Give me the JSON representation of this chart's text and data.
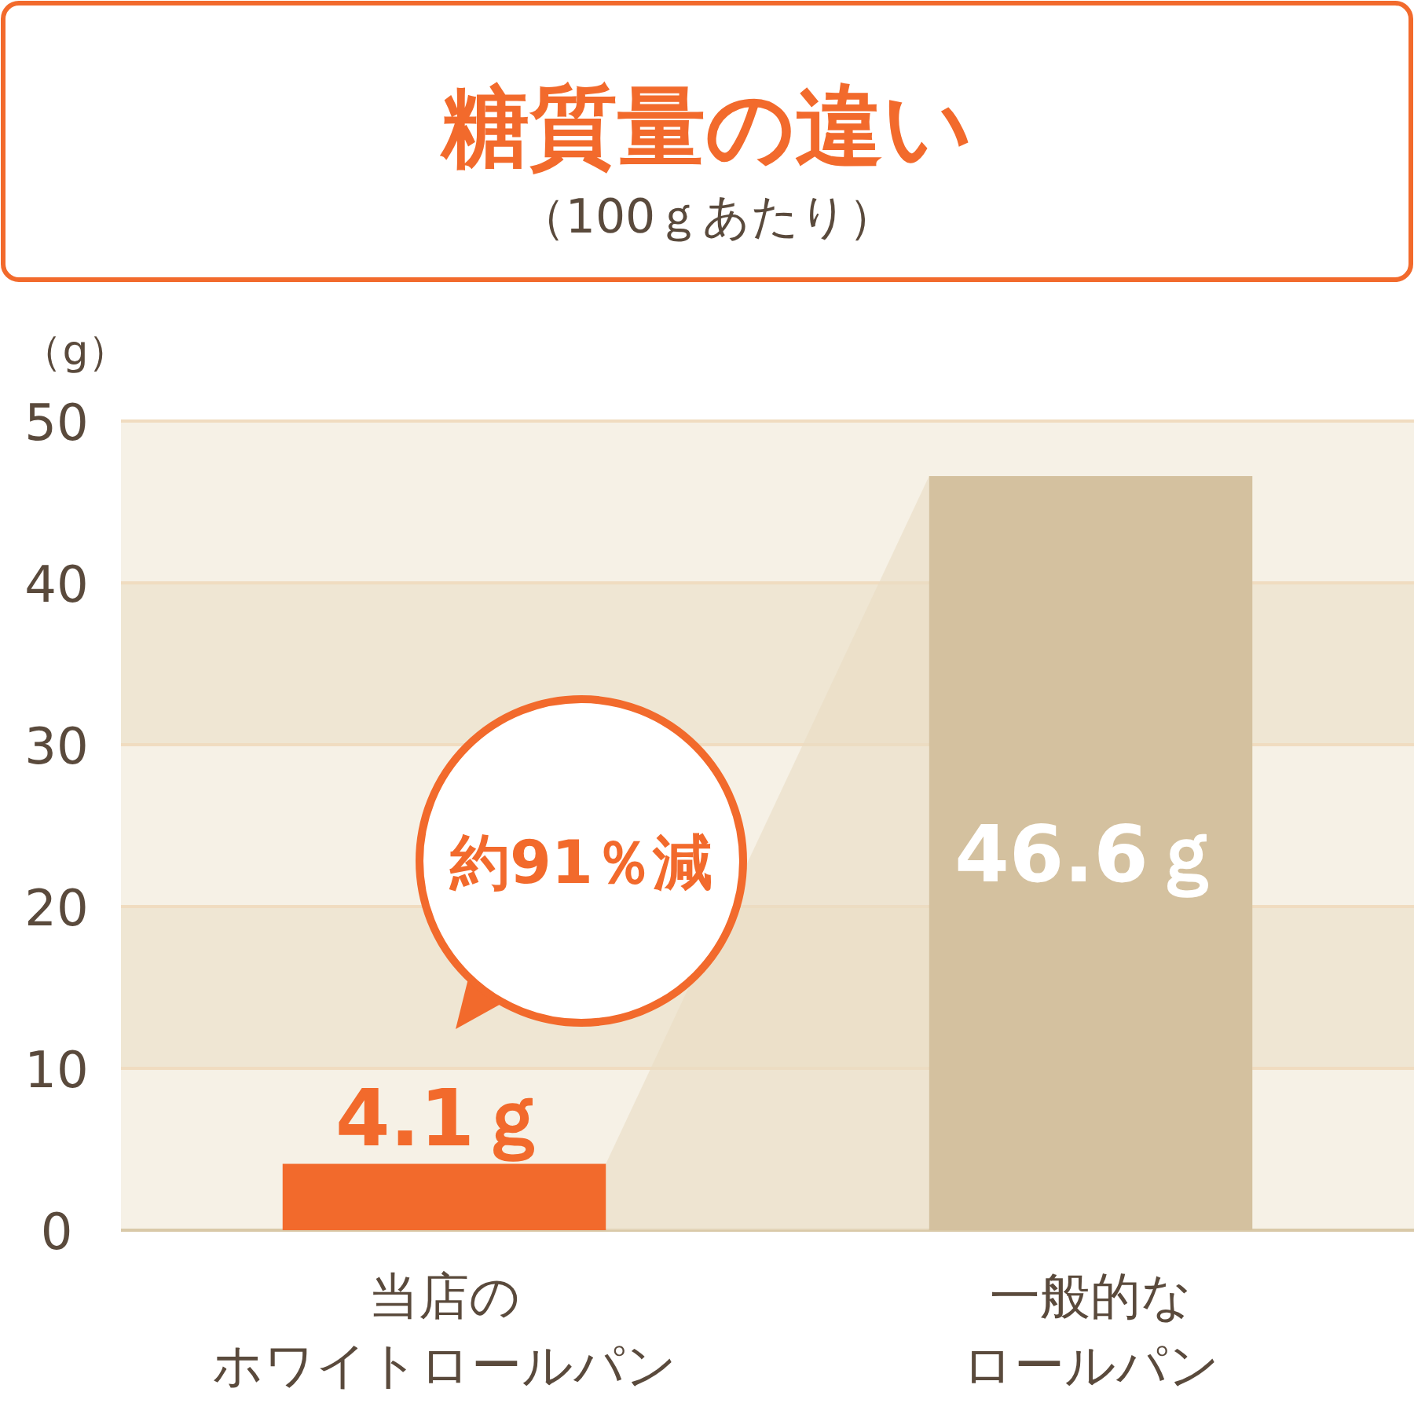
{
  "chart_data": {
    "type": "bar",
    "title": "糖質量の違い",
    "subtitle": "（100ｇあたり）",
    "ylabel": "（g）",
    "categories": [
      "当店のホワイトロールパン",
      "一般的なロールパン"
    ],
    "values": [
      4.1,
      46.6
    ],
    "colors": [
      "#f26a2c",
      "#d4c19f"
    ],
    "value_labels": [
      "4.1ｇ",
      "46.6ｇ"
    ],
    "ylim": [
      0,
      50
    ],
    "yticks": [
      0,
      10,
      20,
      30,
      40,
      50
    ],
    "grid": "y",
    "annotations": [
      "約91％減"
    ]
  }
}
